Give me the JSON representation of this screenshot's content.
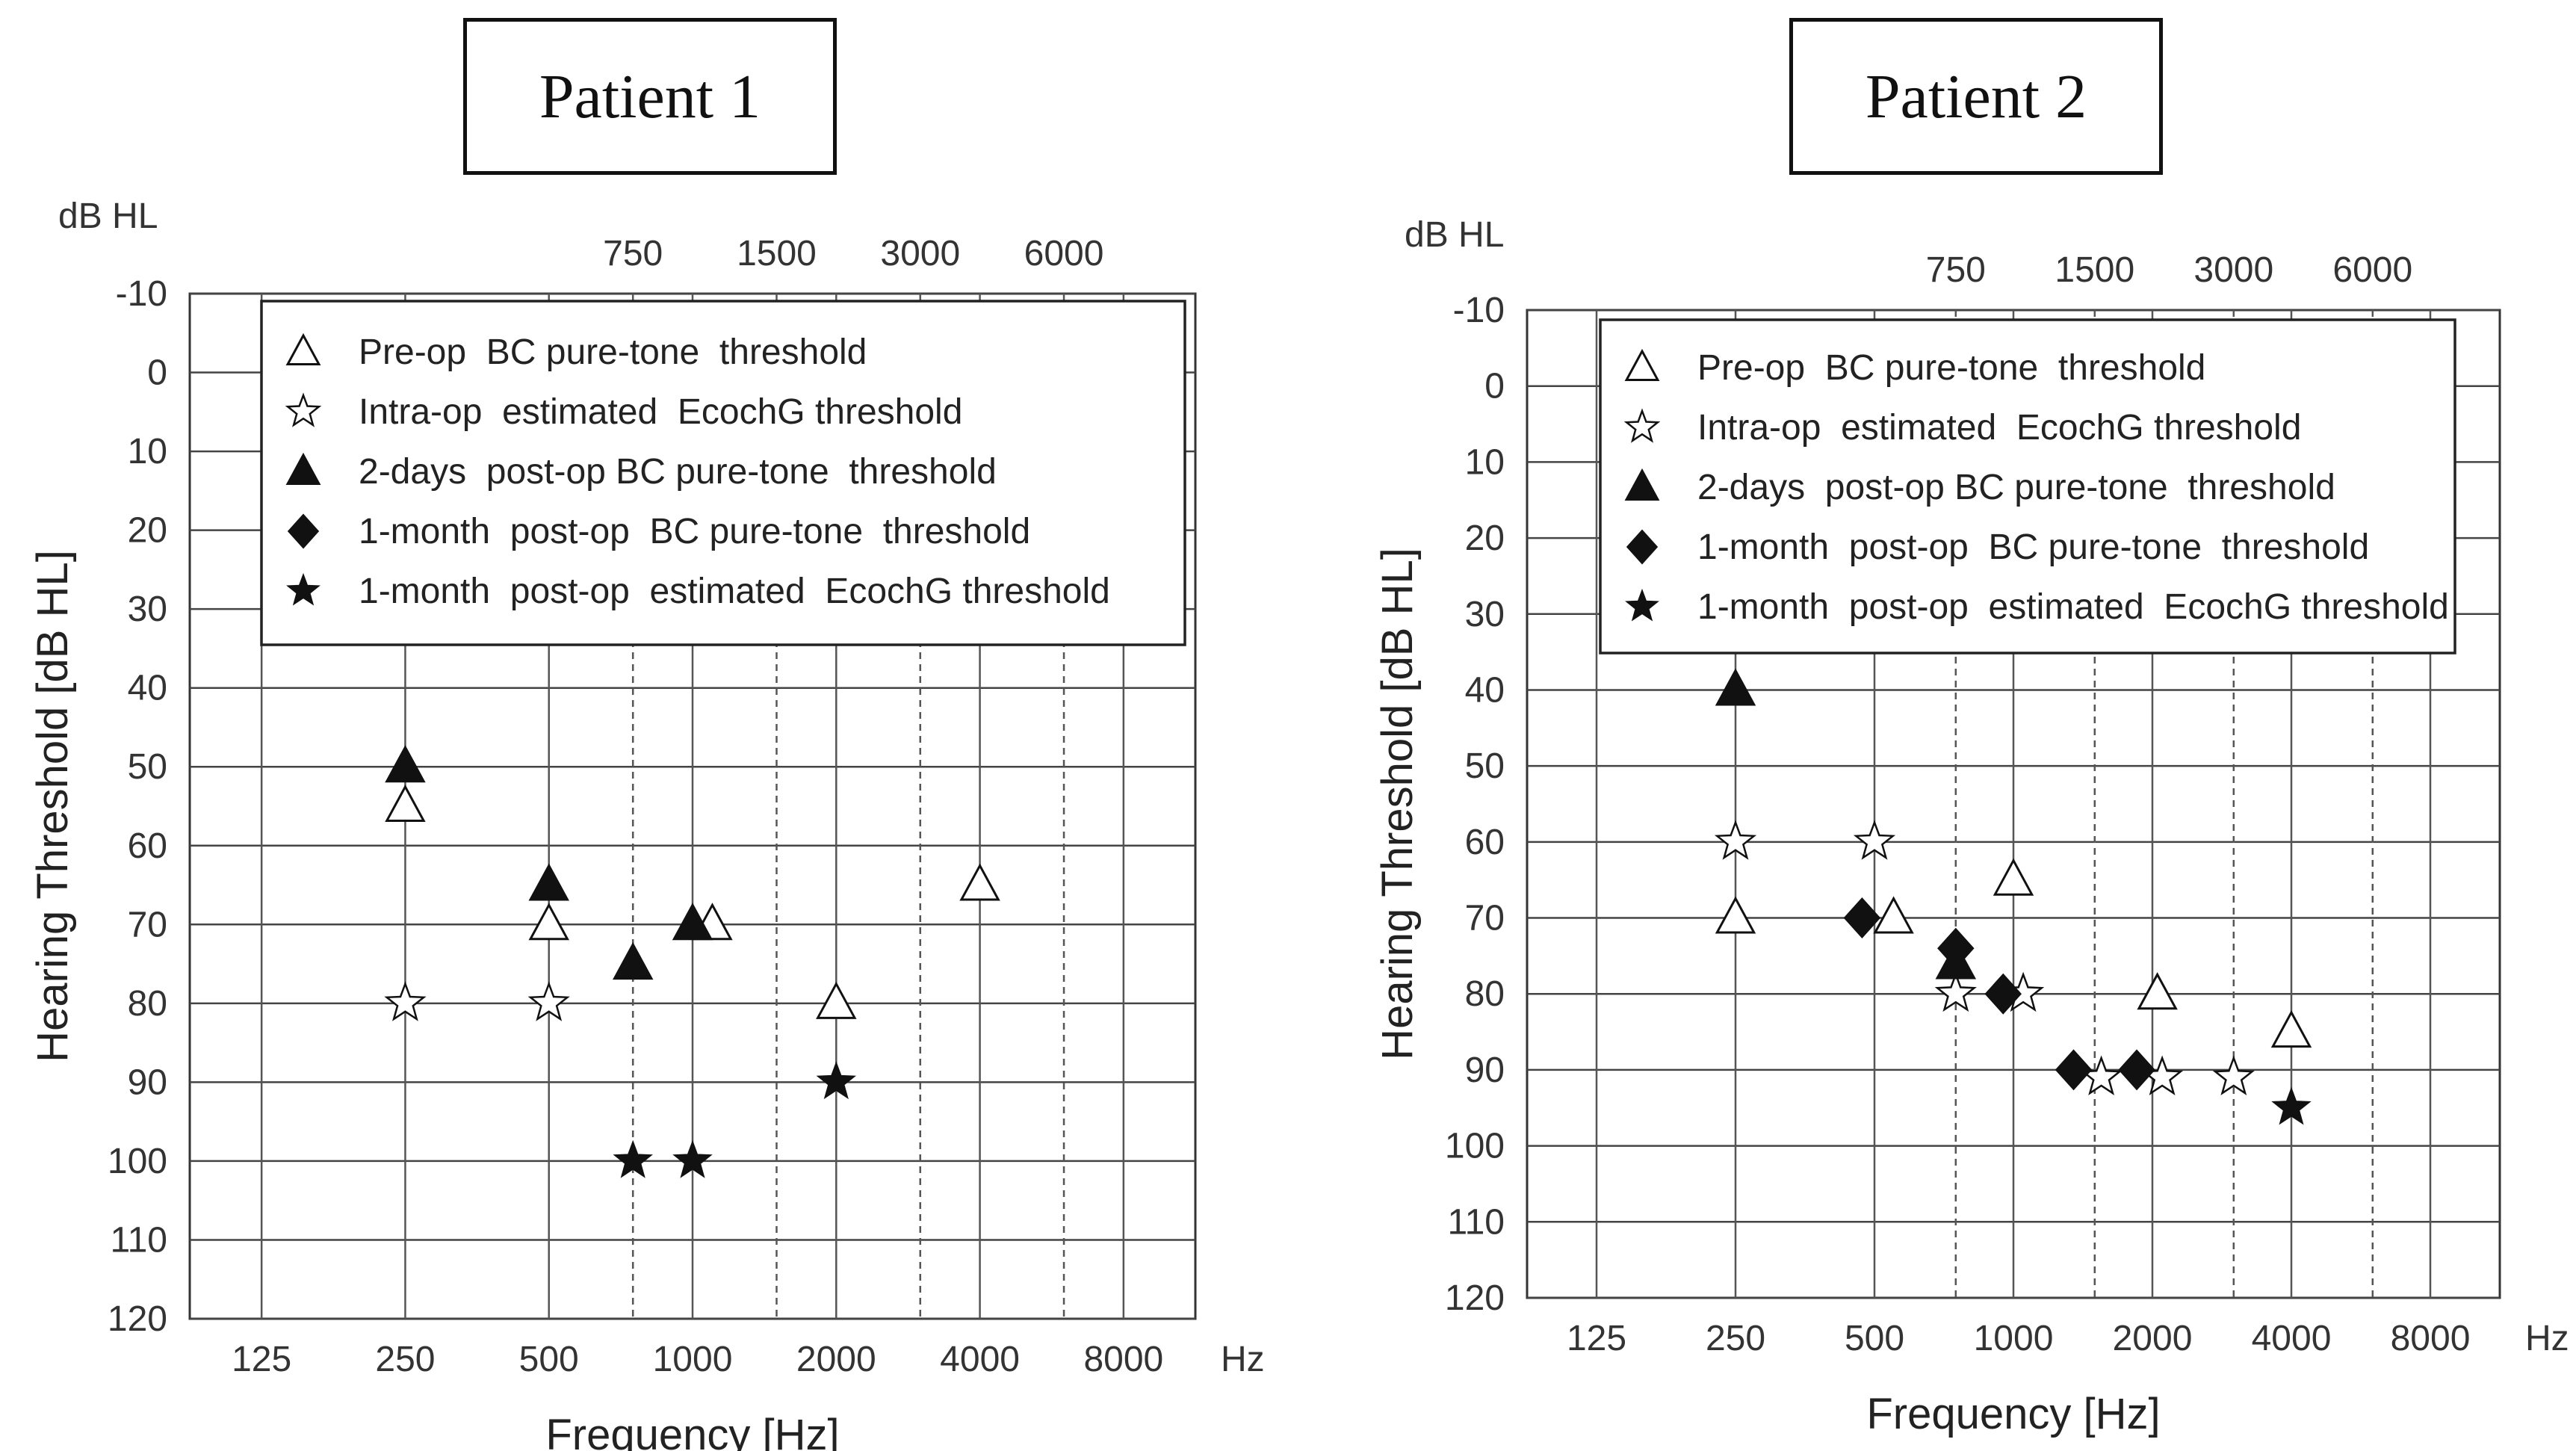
{
  "chart_data": [
    {
      "type": "scatter",
      "title": "Patient 1",
      "xlabel": "Frequency [Hz]",
      "ylabel": "Hearing Threshold [dB HL]",
      "y_unit_label": "dB HL",
      "x_unit_label": "Hz",
      "x_scale": "log2",
      "x_ticks": [
        "125",
        "250",
        "500",
        "1000",
        "2000",
        "4000",
        "8000"
      ],
      "x_ticks_top": [
        "750",
        "1500",
        "3000",
        "6000"
      ],
      "ylim": [
        -10,
        120
      ],
      "y_ticks": [
        "-10",
        "0",
        "10",
        "20",
        "30",
        "40",
        "50",
        "60",
        "70",
        "80",
        "90",
        "100",
        "110",
        "120"
      ],
      "inverted_y": true,
      "legend": [
        {
          "marker": "triangle-open",
          "label": "Pre-op  BC pure-tone  threshold"
        },
        {
          "marker": "star-open",
          "label": "Intra-op  estimated  EcochG threshold"
        },
        {
          "marker": "triangle-filled",
          "label": "2-days  post-op BC pure-tone  threshold"
        },
        {
          "marker": "diamond-filled",
          "label": "1-month  post-op  BC pure-tone  threshold"
        },
        {
          "marker": "star-filled",
          "label": "1-month  post-op  estimated  EcochG threshold"
        }
      ],
      "series": [
        {
          "name": "Pre-op BC pure-tone threshold",
          "marker": "triangle-open",
          "points": [
            [
              250,
              55
            ],
            [
              500,
              70
            ],
            [
              1100,
              70
            ],
            [
              2000,
              80
            ],
            [
              4000,
              65
            ]
          ]
        },
        {
          "name": "Intra-op estimated EcochG threshold",
          "marker": "star-open",
          "points": [
            [
              250,
              80
            ],
            [
              500,
              80
            ]
          ]
        },
        {
          "name": "2-days post-op BC pure-tone threshold",
          "marker": "triangle-filled",
          "points": [
            [
              250,
              50
            ],
            [
              500,
              65
            ],
            [
              750,
              75
            ],
            [
              1000,
              70
            ]
          ]
        },
        {
          "name": "1-month post-op BC pure-tone threshold",
          "marker": "diamond-filled",
          "points": []
        },
        {
          "name": "1-month post-op estimated EcochG threshold",
          "marker": "star-filled",
          "points": [
            [
              750,
              100
            ],
            [
              1000,
              100
            ],
            [
              2000,
              90
            ]
          ]
        }
      ]
    },
    {
      "type": "scatter",
      "title": "Patient 2",
      "xlabel": "Frequency [Hz]",
      "ylabel": "Hearing Threshold [dB HL]",
      "y_unit_label": "dB HL",
      "x_unit_label": "Hz",
      "x_scale": "log2",
      "x_ticks": [
        "125",
        "250",
        "500",
        "1000",
        "2000",
        "4000",
        "8000"
      ],
      "x_ticks_top": [
        "750",
        "1500",
        "3000",
        "6000"
      ],
      "ylim": [
        -10,
        120
      ],
      "y_ticks": [
        "-10",
        "0",
        "10",
        "20",
        "30",
        "40",
        "50",
        "60",
        "70",
        "80",
        "90",
        "100",
        "110",
        "120"
      ],
      "inverted_y": true,
      "legend": [
        {
          "marker": "triangle-open",
          "label": "Pre-op  BC pure-tone  threshold"
        },
        {
          "marker": "star-open",
          "label": "Intra-op  estimated  EcochG threshold"
        },
        {
          "marker": "triangle-filled",
          "label": "2-days  post-op BC pure-tone  threshold"
        },
        {
          "marker": "diamond-filled",
          "label": "1-month  post-op  BC pure-tone  threshold"
        },
        {
          "marker": "star-filled",
          "label": "1-month  post-op  estimated  EcochG threshold"
        }
      ],
      "series": [
        {
          "name": "Pre-op BC pure-tone threshold",
          "marker": "triangle-open",
          "points": [
            [
              250,
              70
            ],
            [
              550,
              70
            ],
            [
              1000,
              65
            ],
            [
              2050,
              80
            ],
            [
              4000,
              85
            ]
          ]
        },
        {
          "name": "Intra-op estimated EcochG threshold",
          "marker": "star-open",
          "points": [
            [
              250,
              60
            ],
            [
              500,
              60
            ],
            [
              750,
              80
            ],
            [
              1050,
              80
            ],
            [
              1550,
              91
            ],
            [
              2100,
              91
            ],
            [
              3000,
              91
            ]
          ]
        },
        {
          "name": "2-days post-op BC pure-tone threshold",
          "marker": "triangle-filled",
          "points": [
            [
              250,
              40
            ],
            [
              750,
              76
            ]
          ]
        },
        {
          "name": "1-month post-op BC pure-tone threshold",
          "marker": "diamond-filled",
          "points": [
            [
              470,
              70
            ],
            [
              750,
              74
            ],
            [
              950,
              80
            ],
            [
              1350,
              90
            ],
            [
              1850,
              90
            ]
          ]
        },
        {
          "name": "1-month post-op estimated EcochG threshold",
          "marker": "star-filled",
          "points": [
            [
              4000,
              95
            ]
          ]
        }
      ]
    }
  ]
}
